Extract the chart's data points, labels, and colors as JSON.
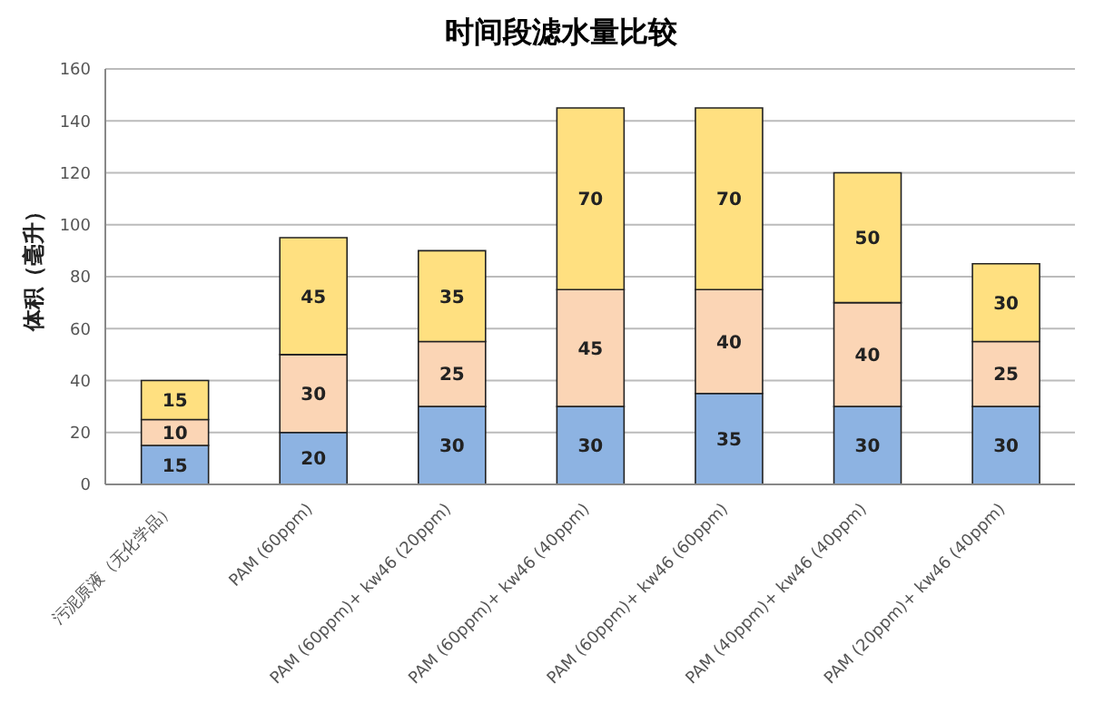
{
  "chart_data": {
    "type": "bar",
    "title": "时间段滤水量比较",
    "ylabel": "体积（毫升）",
    "stacked": true,
    "data_labels": true,
    "grid": "y",
    "legend": false,
    "categories": [
      "污泥原液（无化学品）",
      "PAM (60ppm)",
      "PAM (60ppm)+ kw46 (20ppm)",
      "PAM (60ppm)+ kw46 (40ppm)",
      "PAM (60ppm)+ kw46 (60ppm)",
      "PAM (40ppm)+ kw46 (40ppm)",
      "PAM (20ppm)+ kw46 (40ppm)"
    ],
    "series": [
      {
        "color": "#8db3e2",
        "values": [
          15,
          20,
          30,
          30,
          35,
          30,
          30
        ]
      },
      {
        "color": "#fbd5b5",
        "values": [
          10,
          30,
          25,
          45,
          40,
          40,
          25
        ]
      },
      {
        "color": "#ffe080",
        "values": [
          15,
          45,
          35,
          70,
          70,
          50,
          30
        ]
      }
    ],
    "ylim": [
      0,
      160
    ],
    "yticks": [
      0,
      20,
      40,
      60,
      80,
      100,
      120,
      140,
      160
    ]
  }
}
